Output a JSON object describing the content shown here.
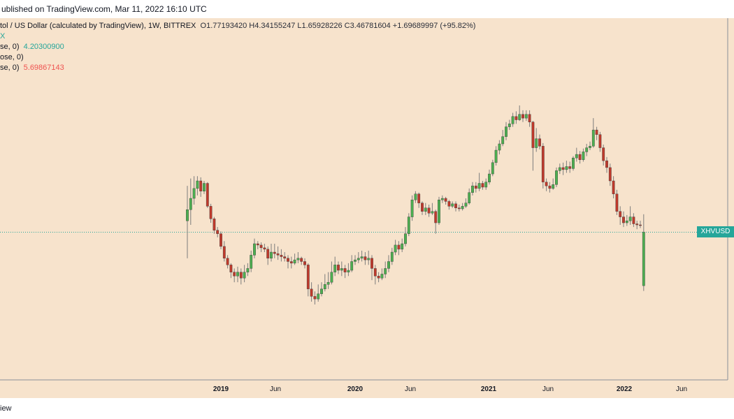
{
  "header": {
    "published": "ublished on TradingView.com, Mar 11, 2022 16:10 UTC"
  },
  "legend": {
    "symbol_line": "tol / US Dollar (calculated by TradingView), 1W, BITTREX",
    "ohlc": "O1.77193420  H4.34155247  L1.65928226  C3.46781604  +1.69689997 (+95.82%)",
    "marker": "X",
    "ind1_label": "se, 0)",
    "ind1_value": "4.20300900",
    "ind2_label": "ose, 0)",
    "ind3_label": "se, 0)",
    "ind3_value": "5.69867143"
  },
  "price_tag": "XHVUSD",
  "footer": {
    "brand": "iew"
  },
  "colors": {
    "up": "#26a69a",
    "up_body": "#4caf50",
    "down": "#c0392b",
    "background": "#f7e3cc"
  },
  "chart_data": {
    "type": "candlestick",
    "x_ticks": [
      "2019",
      "Jun",
      "2020",
      "Jun",
      "2021",
      "Jun",
      "2022",
      "Jun"
    ],
    "y_scale": "log",
    "last_close": 3.46781604,
    "candles": [
      [
        4.0,
        4.6,
        6.2,
        2.5
      ],
      [
        4.6,
        5.3,
        6.8,
        3.8
      ],
      [
        5.3,
        6.0,
        7.0,
        4.9
      ],
      [
        6.0,
        6.6,
        7.0,
        5.5
      ],
      [
        6.6,
        5.8,
        6.9,
        5.4
      ],
      [
        5.8,
        6.4,
        6.6,
        5.6
      ],
      [
        6.4,
        4.8,
        6.5,
        4.7
      ],
      [
        4.8,
        4.1,
        4.95,
        3.9
      ],
      [
        4.1,
        3.55,
        4.2,
        3.4
      ],
      [
        3.55,
        3.4,
        3.7,
        3.25
      ],
      [
        3.4,
        2.9,
        3.5,
        2.8
      ],
      [
        2.9,
        2.5,
        3.1,
        2.4
      ],
      [
        2.5,
        2.3,
        2.6,
        2.2
      ],
      [
        2.3,
        2.1,
        2.35,
        1.95
      ],
      [
        2.1,
        2.0,
        2.2,
        1.85
      ],
      [
        2.0,
        2.1,
        2.25,
        1.85
      ],
      [
        2.1,
        1.95,
        2.2,
        1.8
      ],
      [
        1.95,
        2.1,
        2.3,
        1.85
      ],
      [
        2.1,
        2.2,
        2.35,
        2.0
      ],
      [
        2.2,
        2.6,
        2.75,
        2.1
      ],
      [
        2.6,
        3.0,
        3.2,
        2.5
      ],
      [
        3.0,
        2.95,
        3.1,
        2.8
      ],
      [
        2.95,
        2.85,
        3.05,
        2.7
      ],
      [
        2.85,
        2.8,
        3.0,
        2.7
      ],
      [
        2.8,
        2.5,
        2.9,
        2.3
      ],
      [
        2.5,
        2.7,
        3.0,
        2.4
      ],
      [
        2.7,
        2.65,
        3.0,
        2.5
      ],
      [
        2.65,
        2.6,
        2.9,
        2.45
      ],
      [
        2.6,
        2.55,
        2.8,
        2.4
      ],
      [
        2.55,
        2.5,
        2.7,
        2.4
      ],
      [
        2.5,
        2.4,
        2.6,
        2.2
      ],
      [
        2.4,
        2.35,
        2.55,
        2.2
      ],
      [
        2.35,
        2.45,
        2.65,
        2.3
      ],
      [
        2.45,
        2.5,
        2.7,
        2.35
      ],
      [
        2.5,
        2.4,
        2.55,
        2.3
      ],
      [
        2.4,
        2.3,
        2.5,
        2.2
      ],
      [
        2.3,
        1.7,
        2.35,
        1.55
      ],
      [
        1.7,
        1.55,
        1.85,
        1.45
      ],
      [
        1.55,
        1.5,
        1.65,
        1.4
      ],
      [
        1.5,
        1.6,
        1.8,
        1.45
      ],
      [
        1.6,
        1.7,
        1.85,
        1.55
      ],
      [
        1.7,
        1.8,
        2.05,
        1.65
      ],
      [
        1.8,
        1.85,
        2.1,
        1.7
      ],
      [
        1.85,
        2.1,
        2.4,
        1.8
      ],
      [
        2.1,
        2.3,
        2.55,
        2.0
      ],
      [
        2.3,
        2.15,
        2.4,
        2.05
      ],
      [
        2.15,
        2.2,
        2.4,
        2.0
      ],
      [
        2.2,
        2.1,
        2.3,
        1.95
      ],
      [
        2.1,
        2.15,
        2.35,
        2.0
      ],
      [
        2.15,
        2.4,
        2.6,
        2.1
      ],
      [
        2.4,
        2.45,
        2.6,
        2.3
      ],
      [
        2.45,
        2.5,
        2.7,
        2.35
      ],
      [
        2.5,
        2.55,
        2.75,
        2.4
      ],
      [
        2.55,
        2.45,
        2.7,
        2.3
      ],
      [
        2.45,
        2.5,
        2.75,
        2.3
      ],
      [
        2.5,
        2.2,
        2.6,
        1.9
      ],
      [
        2.2,
        2.0,
        2.3,
        1.8
      ],
      [
        2.0,
        1.95,
        2.1,
        1.85
      ],
      [
        1.95,
        2.05,
        2.2,
        1.9
      ],
      [
        2.05,
        2.2,
        2.4,
        1.95
      ],
      [
        2.2,
        2.4,
        2.6,
        2.1
      ],
      [
        2.4,
        2.7,
        2.85,
        2.3
      ],
      [
        2.7,
        2.95,
        3.15,
        2.6
      ],
      [
        2.95,
        2.8,
        3.1,
        2.6
      ],
      [
        2.8,
        3.0,
        3.2,
        2.7
      ],
      [
        3.0,
        3.4,
        3.7,
        2.9
      ],
      [
        3.4,
        4.2,
        4.4,
        3.3
      ],
      [
        4.2,
        5.2,
        5.5,
        4.0
      ],
      [
        5.2,
        5.6,
        5.8,
        5.0
      ],
      [
        5.6,
        5.0,
        5.7,
        4.7
      ],
      [
        5.0,
        4.5,
        5.1,
        4.3
      ],
      [
        4.5,
        4.7,
        5.0,
        4.3
      ],
      [
        4.7,
        4.4,
        4.9,
        4.2
      ],
      [
        4.4,
        4.5,
        5.0,
        4.3
      ],
      [
        4.5,
        3.9,
        4.6,
        3.4
      ],
      [
        3.9,
        5.2,
        5.4,
        3.8
      ],
      [
        5.2,
        5.3,
        5.5,
        5.0
      ],
      [
        5.3,
        5.1,
        5.4,
        4.9
      ],
      [
        5.1,
        4.8,
        5.2,
        4.6
      ],
      [
        4.8,
        4.95,
        5.1,
        4.7
      ],
      [
        4.95,
        4.7,
        5.1,
        4.5
      ],
      [
        4.7,
        4.65,
        4.9,
        4.5
      ],
      [
        4.65,
        4.8,
        5.0,
        4.55
      ],
      [
        4.8,
        5.0,
        5.3,
        4.7
      ],
      [
        5.0,
        5.7,
        6.0,
        4.9
      ],
      [
        5.7,
        6.2,
        6.5,
        5.5
      ],
      [
        6.2,
        6.0,
        6.5,
        5.7
      ],
      [
        6.0,
        6.4,
        7.3,
        5.8
      ],
      [
        6.4,
        6.1,
        6.6,
        5.9
      ],
      [
        6.1,
        6.5,
        6.8,
        5.9
      ],
      [
        6.5,
        7.2,
        7.6,
        6.3
      ],
      [
        7.2,
        8.3,
        8.6,
        7.0
      ],
      [
        8.3,
        9.7,
        10.2,
        8.0
      ],
      [
        9.7,
        10.5,
        11.0,
        9.2
      ],
      [
        10.5,
        11.5,
        12.5,
        10.2
      ],
      [
        11.5,
        13.0,
        13.8,
        11.0
      ],
      [
        13.0,
        13.5,
        14.2,
        12.5
      ],
      [
        13.5,
        14.8,
        15.5,
        13.0
      ],
      [
        14.8,
        14.2,
        15.8,
        13.5
      ],
      [
        14.2,
        15.2,
        17.0,
        14.0
      ],
      [
        15.2,
        14.5,
        16.0,
        13.8
      ],
      [
        14.5,
        15.2,
        16.0,
        14.0
      ],
      [
        15.2,
        13.8,
        16.0,
        13.0
      ],
      [
        13.8,
        10.0,
        14.0,
        7.5
      ],
      [
        10.0,
        11.2,
        12.8,
        9.5
      ],
      [
        11.2,
        10.2,
        11.8,
        9.8
      ],
      [
        10.2,
        6.5,
        10.6,
        6.0
      ],
      [
        6.5,
        6.2,
        6.8,
        5.8
      ],
      [
        6.2,
        6.0,
        6.5,
        5.7
      ],
      [
        6.0,
        6.3,
        6.8,
        5.9
      ],
      [
        6.3,
        7.5,
        7.8,
        6.1
      ],
      [
        7.5,
        7.8,
        8.2,
        7.2
      ],
      [
        7.8,
        7.6,
        8.3,
        7.1
      ],
      [
        7.6,
        7.9,
        8.5,
        7.3
      ],
      [
        7.9,
        7.7,
        8.4,
        7.3
      ],
      [
        7.7,
        8.8,
        9.0,
        7.5
      ],
      [
        8.8,
        9.2,
        10.0,
        8.4
      ],
      [
        9.2,
        8.6,
        9.6,
        8.2
      ],
      [
        8.6,
        9.5,
        9.9,
        8.4
      ],
      [
        9.5,
        10.0,
        10.5,
        9.0
      ],
      [
        10.0,
        10.2,
        10.8,
        9.7
      ],
      [
        10.2,
        12.5,
        14.5,
        10.0
      ],
      [
        12.5,
        11.8,
        13.0,
        11.0
      ],
      [
        11.8,
        10.0,
        12.2,
        9.5
      ],
      [
        10.0,
        8.5,
        10.4,
        8.0
      ],
      [
        8.5,
        7.8,
        8.9,
        7.3
      ],
      [
        7.8,
        6.6,
        8.2,
        6.2
      ],
      [
        6.6,
        5.6,
        7.0,
        5.3
      ],
      [
        5.6,
        4.5,
        5.9,
        4.3
      ],
      [
        4.5,
        4.2,
        4.8,
        3.8
      ],
      [
        4.2,
        3.9,
        4.5,
        3.7
      ],
      [
        3.9,
        4.0,
        4.3,
        3.75
      ],
      [
        4.0,
        4.2,
        4.8,
        3.8
      ],
      [
        4.2,
        3.85,
        4.4,
        3.7
      ],
      [
        3.85,
        3.8,
        4.0,
        3.6
      ],
      [
        3.8,
        3.78,
        4.0,
        3.65
      ],
      [
        1.7719342,
        3.46781604,
        4.34155247,
        1.65928226
      ]
    ]
  }
}
